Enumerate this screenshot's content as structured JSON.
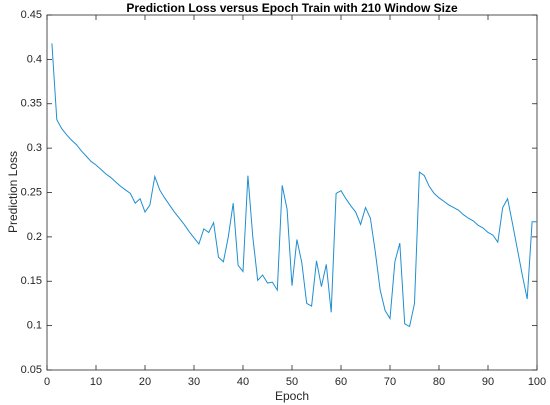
{
  "chart_data": {
    "type": "line",
    "title": "Prediction Loss versus Epoch Train with 210 Window Size",
    "x_label": "Epoch",
    "y_label": "Prediction Loss",
    "x": [
      1,
      2,
      3,
      4,
      5,
      6,
      7,
      8,
      9,
      10,
      11,
      12,
      13,
      14,
      15,
      16,
      17,
      18,
      19,
      20,
      21,
      22,
      23,
      24,
      25,
      26,
      27,
      28,
      29,
      30,
      31,
      32,
      33,
      34,
      35,
      36,
      37,
      38,
      39,
      40,
      41,
      42,
      43,
      44,
      45,
      46,
      47,
      48,
      49,
      50,
      51,
      52,
      53,
      54,
      55,
      56,
      57,
      58,
      59,
      60,
      61,
      62,
      63,
      64,
      65,
      66,
      67,
      68,
      69,
      70,
      71,
      72,
      73,
      74,
      75,
      76,
      77,
      78,
      79,
      80,
      81,
      82,
      83,
      84,
      85,
      86,
      87,
      88,
      89,
      90,
      91,
      92,
      93,
      94,
      95,
      96,
      97,
      98,
      99,
      100
    ],
    "series": [
      {
        "name": "Prediction Loss",
        "color": "#1f8fcf",
        "values": [
          0.418,
          0.332,
          0.322,
          0.315,
          0.309,
          0.304,
          0.297,
          0.291,
          0.285,
          0.281,
          0.276,
          0.271,
          0.267,
          0.262,
          0.257,
          0.253,
          0.249,
          0.238,
          0.243,
          0.228,
          0.236,
          0.268,
          0.253,
          0.244,
          0.236,
          0.228,
          0.221,
          0.214,
          0.206,
          0.199,
          0.192,
          0.209,
          0.205,
          0.216,
          0.177,
          0.172,
          0.2,
          0.238,
          0.168,
          0.161,
          0.269,
          0.2,
          0.151,
          0.157,
          0.148,
          0.149,
          0.14,
          0.258,
          0.231,
          0.145,
          0.197,
          0.171,
          0.125,
          0.122,
          0.173,
          0.144,
          0.169,
          0.115,
          0.249,
          0.252,
          0.243,
          0.235,
          0.228,
          0.214,
          0.233,
          0.221,
          0.183,
          0.14,
          0.117,
          0.108,
          0.172,
          0.193,
          0.102,
          0.099,
          0.125,
          0.273,
          0.269,
          0.257,
          0.249,
          0.244,
          0.24,
          0.236,
          0.233,
          0.23,
          0.225,
          0.221,
          0.218,
          0.213,
          0.21,
          0.205,
          0.202,
          0.194,
          0.233,
          0.243,
          0.215,
          0.186,
          0.157,
          0.13,
          0.217,
          0.217
        ]
      }
    ],
    "xlim": [
      0,
      100
    ],
    "xticks": [
      0,
      10,
      20,
      30,
      40,
      50,
      60,
      70,
      80,
      90,
      100
    ],
    "ylim": [
      0.05,
      0.45
    ],
    "yticks": [
      0.05,
      0.1,
      0.15,
      0.2,
      0.25,
      0.3,
      0.35,
      0.4,
      0.45
    ],
    "grid": false
  }
}
